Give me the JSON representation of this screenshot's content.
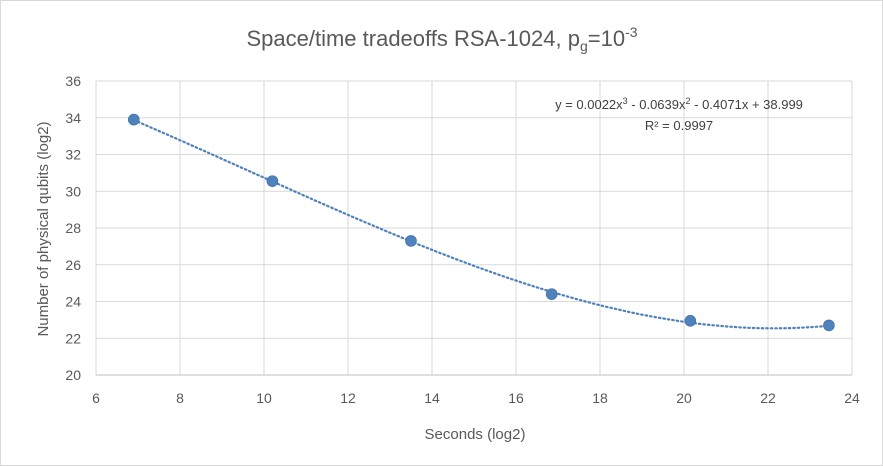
{
  "chart_data": {
    "type": "scatter",
    "title": {
      "main": "Space/time tradeoffs RSA-1024, p",
      "sub": "g",
      "mid": "=10",
      "sup": "-3"
    },
    "xlabel": "Seconds (log2)",
    "ylabel": "Number of physical qubits (log2)",
    "xlim": [
      6,
      24
    ],
    "ylim": [
      20,
      36
    ],
    "xticks": [
      6,
      8,
      10,
      12,
      14,
      16,
      18,
      20,
      22,
      24
    ],
    "yticks": [
      20,
      22,
      24,
      26,
      28,
      30,
      32,
      34,
      36
    ],
    "grid": true,
    "series": [
      {
        "x": [
          6.9,
          10.2,
          13.5,
          16.85,
          20.15,
          23.45
        ],
        "y": [
          33.9,
          30.55,
          27.3,
          24.4,
          22.95,
          22.7
        ],
        "color": "#4f81bd"
      }
    ],
    "trendline": {
      "type": "polynomial",
      "order": 3,
      "style": "dotted",
      "color": "#4f81bd",
      "equation": {
        "p1": "y = 0.0022x",
        "e1": "3",
        "p2": " - 0.0639x",
        "e2": "2",
        "p3": " - 0.4071x + 38.999"
      },
      "r_squared": "R² = 0.9997"
    }
  }
}
